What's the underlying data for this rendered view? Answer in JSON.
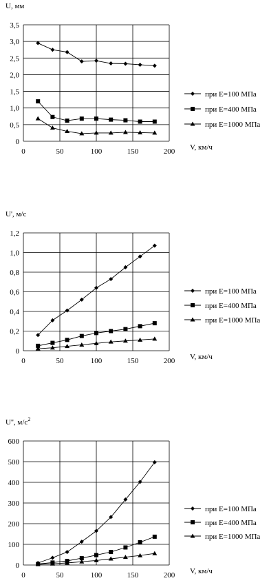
{
  "chart_data": [
    {
      "type": "line",
      "ylabel": "U, мм",
      "xlabel": "V, км/ч",
      "x": [
        20,
        40,
        60,
        80,
        100,
        120,
        140,
        160,
        180
      ],
      "xlim": [
        0,
        200
      ],
      "ylim": [
        0,
        3.5
      ],
      "xticks": [
        "0",
        "50",
        "100",
        "150",
        "200"
      ],
      "xtick_values": [
        0,
        50,
        100,
        150,
        200
      ],
      "yticks": [
        "0",
        "0,5",
        "1,0",
        "1,5",
        "2,0",
        "2,5",
        "3,0",
        "3,5"
      ],
      "ytick_values": [
        0,
        0.5,
        1.0,
        1.5,
        2.0,
        2.5,
        3.0,
        3.5
      ],
      "grid": true,
      "legend": "right",
      "series": [
        {
          "name": "при Е=100 МПа",
          "marker": "diamond",
          "values": [
            2.95,
            2.75,
            2.68,
            2.4,
            2.42,
            2.34,
            2.33,
            2.3,
            2.27
          ]
        },
        {
          "name": "при Е=400 МПа",
          "marker": "square",
          "values": [
            1.2,
            0.73,
            0.62,
            0.68,
            0.68,
            0.65,
            0.63,
            0.59,
            0.59
          ]
        },
        {
          "name": "при Е=1000 МПа",
          "marker": "triangle",
          "values": [
            0.68,
            0.4,
            0.3,
            0.23,
            0.25,
            0.25,
            0.27,
            0.26,
            0.25
          ]
        }
      ]
    },
    {
      "type": "line",
      "ylabel": "U', м/с",
      "xlabel": "V, км/ч",
      "x": [
        20,
        40,
        60,
        80,
        100,
        120,
        140,
        160,
        180
      ],
      "xlim": [
        0,
        200
      ],
      "ylim": [
        0,
        1.2
      ],
      "xticks": [
        "0",
        "50",
        "100",
        "150",
        "200"
      ],
      "xtick_values": [
        0,
        50,
        100,
        150,
        200
      ],
      "yticks": [
        "0",
        "0,2",
        "0,4",
        "0,6",
        "0,8",
        "1,0",
        "1,2"
      ],
      "ytick_values": [
        0,
        0.2,
        0.4,
        0.6,
        0.8,
        1.0,
        1.2
      ],
      "grid": true,
      "legend": "right",
      "series": [
        {
          "name": "при Е=100 МПа",
          "marker": "diamond",
          "values": [
            0.16,
            0.31,
            0.41,
            0.52,
            0.64,
            0.73,
            0.85,
            0.96,
            1.07
          ]
        },
        {
          "name": "при Е=400 МПа",
          "marker": "square",
          "values": [
            0.05,
            0.08,
            0.11,
            0.15,
            0.18,
            0.2,
            0.22,
            0.25,
            0.28
          ]
        },
        {
          "name": "при Е=1000 МПа",
          "marker": "triangle",
          "values": [
            0.02,
            0.03,
            0.045,
            0.06,
            0.075,
            0.09,
            0.1,
            0.11,
            0.12
          ]
        }
      ]
    },
    {
      "type": "line",
      "ylabel": "U'', м/с",
      "ylabel_sup": "2",
      "xlabel": "V, км/ч",
      "x": [
        20,
        40,
        60,
        80,
        100,
        120,
        140,
        160,
        180
      ],
      "xlim": [
        0,
        200
      ],
      "ylim": [
        0,
        600
      ],
      "xticks": [
        "0",
        "50",
        "100",
        "150",
        "200"
      ],
      "xtick_values": [
        0,
        50,
        100,
        150,
        200
      ],
      "yticks": [
        "0",
        "100",
        "200",
        "300",
        "400",
        "500",
        "600"
      ],
      "ytick_values": [
        0,
        100,
        200,
        300,
        400,
        500,
        600
      ],
      "grid": true,
      "legend": "right",
      "series": [
        {
          "name": "при Е=100 МПа",
          "marker": "diamond",
          "values": [
            10,
            35,
            63,
            113,
            165,
            232,
            317,
            402,
            497
          ]
        },
        {
          "name": "при Е=400 МПа",
          "marker": "square",
          "values": [
            5,
            12,
            20,
            33,
            48,
            63,
            85,
            110,
            137
          ]
        },
        {
          "name": "при Е=1000 МПа",
          "marker": "triangle",
          "values": [
            3,
            6,
            10,
            16,
            22,
            30,
            38,
            46,
            56
          ]
        }
      ]
    }
  ]
}
